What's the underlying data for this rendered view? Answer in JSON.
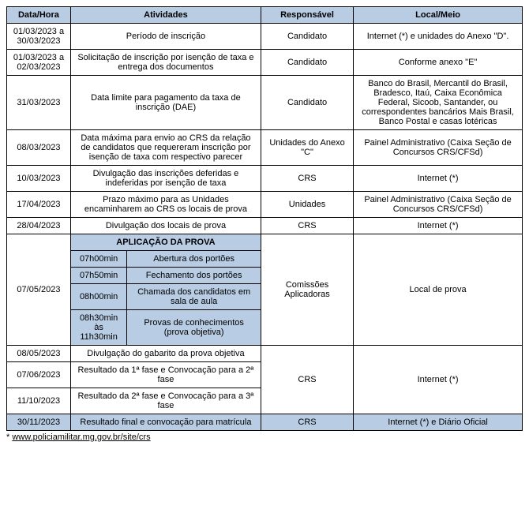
{
  "headers": {
    "col1": "Data/Hora",
    "col2": "Atividades",
    "col3": "Responsável",
    "col4": "Local/Meio"
  },
  "rows": {
    "r1": {
      "date": "01/03/2023 a 30/03/2023",
      "activity": "Período de inscrição",
      "resp": "Candidato",
      "local": "Internet (*) e unidades do Anexo \"D\"."
    },
    "r2": {
      "date": "01/03/2023 a 02/03/2023",
      "activity": "Solicitação de inscrição por isenção de taxa e entrega dos documentos",
      "resp": "Candidato",
      "local": "Conforme anexo \"E\""
    },
    "r3": {
      "date": "31/03/2023",
      "activity": "Data limite para pagamento da taxa de inscrição (DAE)",
      "resp": "Candidato",
      "local": "Banco do Brasil, Mercantil do Brasil, Bradesco, Itaú, Caixa Econômica Federal, Sicoob, Santander, ou correspondentes bancários Mais Brasil, Banco Postal e casas lotéricas"
    },
    "r4": {
      "date": "08/03/2023",
      "activity": "Data máxima para envio ao CRS da relação de candidatos que requereram inscrição por isenção de taxa com respectivo parecer",
      "resp": "Unidades do Anexo \"C\"",
      "local": "Painel Administrativo (Caixa Seção de Concursos CRS/CFSd)"
    },
    "r5": {
      "date": "10/03/2023",
      "activity": "Divulgação das inscrições deferidas e indeferidas por isenção de taxa",
      "resp": "CRS",
      "local": "Internet (*)"
    },
    "r6": {
      "date": "17/04/2023",
      "activity": "Prazo máximo para as Unidades encaminharem ao CRS os locais de prova",
      "resp": "Unidades",
      "local": "Painel Administrativo (Caixa Seção de Concursos CRS/CFSd)"
    },
    "r7": {
      "date": "28/04/2023",
      "activity": "Divulgação dos locais de prova",
      "resp": "CRS",
      "local": "Internet (*)"
    },
    "exam": {
      "header": "APLICAÇÃO DA PROVA",
      "date": "07/05/2023",
      "resp": "Comissões Aplicadoras",
      "local": "Local de prova",
      "s1": {
        "time": "07h00min",
        "act": "Abertura dos portões"
      },
      "s2": {
        "time": "07h50min",
        "act": "Fechamento dos portões"
      },
      "s3": {
        "time": "08h00min",
        "act": "Chamada dos candidatos em sala de aula"
      },
      "s4": {
        "time": "08h30min às 11h30min",
        "act": "Provas de conhecimentos (prova objetiva)"
      }
    },
    "r8": {
      "date": "08/05/2023",
      "activity": "Divulgação do gabarito da prova objetiva"
    },
    "r9": {
      "date": "07/06/2023",
      "activity": "Resultado da 1ª fase e Convocação para a 2ª fase",
      "resp": "CRS",
      "local": "Internet (*)"
    },
    "r10": {
      "date": "11/10/2023",
      "activity": "Resultado da 2ª fase e Convocação para a 3ª fase"
    },
    "r11": {
      "date": "30/11/2023",
      "activity": "Resultado final e convocação para matrícula",
      "resp": "CRS",
      "local": "Internet (*) e Diário Oficial"
    }
  },
  "footnote": {
    "prefix": "* ",
    "link": "www.policiamilitar.mg.gov.br/site/crs"
  },
  "colors": {
    "header_bg": "#b8cce4",
    "border": "#000000",
    "text": "#000000",
    "background": "#ffffff"
  },
  "font": {
    "family": "Arial",
    "size_pt": 11
  }
}
